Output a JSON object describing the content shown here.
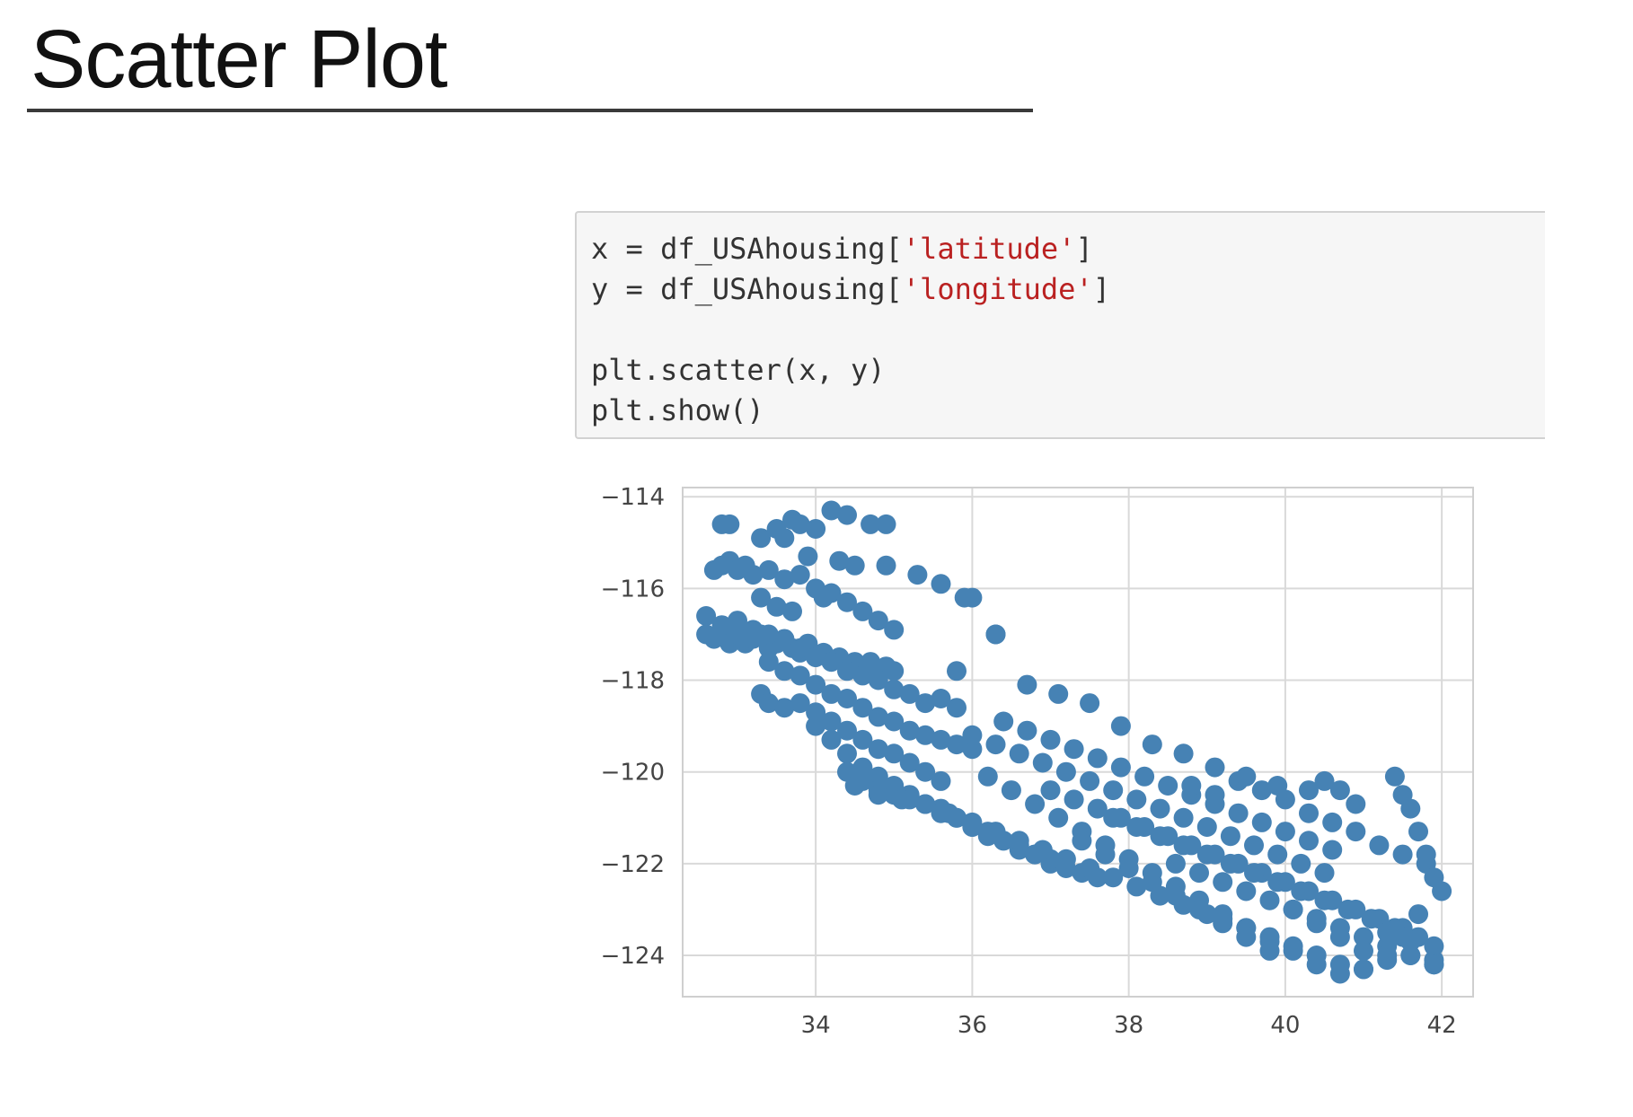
{
  "slide": {
    "title": "Scatter Plot"
  },
  "code_cell": {
    "lines": [
      {
        "segments": [
          {
            "text": "x = df_USAhousing[",
            "kind": "code"
          },
          {
            "text": "'latitude'",
            "kind": "string"
          },
          {
            "text": "]",
            "kind": "code"
          }
        ]
      },
      {
        "segments": [
          {
            "text": "y = df_USAhousing[",
            "kind": "code"
          },
          {
            "text": "'longitude'",
            "kind": "string"
          },
          {
            "text": "]",
            "kind": "code"
          }
        ]
      },
      {
        "segments": []
      },
      {
        "segments": [
          {
            "text": "plt.scatter(x, y)",
            "kind": "code"
          }
        ]
      },
      {
        "segments": [
          {
            "text": "plt.show()",
            "kind": "code"
          }
        ]
      }
    ],
    "colors": {
      "code": "#333333",
      "string": "#ba2121",
      "background": "#f6f6f6"
    }
  },
  "chart_data": {
    "type": "scatter",
    "title": "",
    "xlabel": "",
    "ylabel": "",
    "xlim": [
      32.3,
      42.4
    ],
    "ylim": [
      -124.9,
      -113.8
    ],
    "x_ticks": [
      34,
      36,
      38,
      40,
      42
    ],
    "y_ticks": [
      -114,
      -116,
      -118,
      -120,
      -122,
      -124
    ],
    "x_tick_labels": [
      "34",
      "36",
      "38",
      "40",
      "42"
    ],
    "y_tick_labels": [
      "−114",
      "−116",
      "−118",
      "−120",
      "−122",
      "−124"
    ],
    "grid": true,
    "legend": "none",
    "marker_color": "#4682b4",
    "grid_color": "#d9d9d9",
    "series": [
      {
        "x": [
          32.8,
          32.9,
          33.3,
          33.5,
          33.7,
          33.8,
          34.0,
          34.2,
          34.4,
          34.7,
          34.9,
          33.6,
          33.9,
          34.3,
          33.1,
          32.7,
          32.8,
          32.9,
          33.0,
          33.2,
          33.4,
          33.6,
          33.8,
          34.0,
          34.2,
          34.4,
          34.6,
          34.8,
          35.0,
          33.3,
          33.5,
          33.7,
          34.1,
          34.5,
          34.9,
          35.3,
          35.6,
          35.9,
          36.3,
          32.6,
          32.7,
          32.8,
          32.9,
          33.0,
          33.1,
          33.2,
          33.3,
          33.4,
          33.5,
          33.6,
          33.7,
          33.8,
          33.9,
          34.0,
          34.1,
          34.2,
          34.3,
          34.4,
          34.5,
          34.6,
          34.7,
          34.8,
          34.9,
          35.0,
          32.6,
          32.8,
          33.0,
          33.2,
          33.4,
          33.6,
          33.8,
          34.0,
          34.2,
          34.4,
          34.6,
          34.8,
          35.0,
          35.2,
          35.4,
          35.6,
          35.8,
          33.4,
          33.6,
          33.8,
          34.0,
          34.2,
          34.4,
          34.6,
          34.8,
          35.0,
          35.2,
          35.4,
          35.6,
          35.8,
          36.0,
          33.3,
          33.4,
          33.6,
          33.8,
          34.0,
          34.2,
          34.4,
          34.6,
          34.8,
          35.0,
          35.2,
          35.4,
          35.6,
          34.0,
          34.2,
          34.4,
          34.6,
          34.8,
          35.0,
          35.2,
          35.4,
          35.6,
          35.8,
          36.0,
          36.2,
          36.4,
          36.6,
          36.8,
          37.0,
          34.4,
          34.6,
          34.8,
          35.0,
          35.2,
          35.4,
          35.6,
          35.8,
          36.0,
          36.2,
          36.4,
          36.6,
          36.8,
          37.0,
          37.2,
          37.4,
          37.6,
          34.5,
          34.8,
          35.1,
          35.4,
          35.7,
          36.0,
          36.3,
          36.6,
          36.9,
          37.2,
          37.5,
          37.8,
          38.1,
          38.4,
          38.7,
          39.0,
          36.0,
          36.3,
          36.6,
          36.9,
          37.2,
          37.5,
          37.8,
          38.1,
          38.4,
          38.7,
          39.0,
          39.3,
          39.6,
          39.9,
          40.2,
          40.5,
          36.4,
          36.7,
          37.0,
          37.3,
          37.6,
          37.9,
          38.2,
          38.5,
          38.8,
          39.1,
          39.4,
          39.7,
          40.0,
          40.3,
          40.6,
          37.0,
          37.3,
          37.6,
          37.9,
          38.2,
          38.5,
          38.8,
          39.1,
          39.4,
          39.7,
          40.0,
          40.3,
          40.6,
          40.9,
          41.2,
          41.5,
          37.8,
          38.1,
          38.4,
          38.7,
          39.0,
          39.3,
          39.6,
          39.9,
          40.2,
          40.5,
          40.8,
          41.1,
          41.4,
          41.7,
          41.9,
          38.6,
          38.9,
          39.2,
          39.5,
          39.8,
          40.1,
          40.4,
          40.7,
          41.0,
          41.3,
          41.6,
          41.9,
          39.2,
          39.5,
          39.8,
          40.1,
          40.4,
          40.7,
          41.0,
          41.3,
          41.6,
          41.9,
          36.2,
          36.5,
          36.8,
          37.1,
          37.4,
          37.7,
          38.0,
          38.3,
          38.6,
          38.9,
          39.2,
          39.5,
          39.8,
          40.1,
          40.4,
          40.7,
          41.0,
          37.4,
          37.7,
          38.0,
          38.3,
          38.6,
          38.9,
          39.2,
          39.5,
          39.8,
          40.1,
          40.4,
          40.7,
          41.0,
          41.3,
          41.6,
          38.8,
          39.1,
          39.4,
          39.7,
          40.0,
          40.3,
          40.6,
          40.9,
          41.2,
          41.5,
          41.8,
          41.4,
          41.5,
          41.6,
          41.7,
          41.8,
          41.9,
          42.0,
          41.7,
          41.5,
          41.9,
          41.3,
          40.5,
          40.7,
          40.9,
          36.0,
          35.8,
          36.3,
          36.7,
          37.1,
          37.5,
          37.9,
          38.3,
          38.7,
          39.1,
          39.5,
          39.9,
          40.3
        ],
        "y": [
          -114.6,
          -114.6,
          -114.9,
          -114.7,
          -114.5,
          -114.6,
          -114.7,
          -114.3,
          -114.4,
          -114.6,
          -114.6,
          -114.9,
          -115.3,
          -115.4,
          -115.5,
          -115.6,
          -115.5,
          -115.4,
          -115.6,
          -115.7,
          -115.6,
          -115.8,
          -115.7,
          -116.0,
          -116.1,
          -116.3,
          -116.5,
          -116.7,
          -116.9,
          -116.2,
          -116.4,
          -116.5,
          -116.2,
          -115.5,
          -115.5,
          -115.7,
          -115.9,
          -116.2,
          -117.0,
          -117.0,
          -117.1,
          -116.9,
          -117.2,
          -117.0,
          -117.2,
          -117.1,
          -117.0,
          -117.3,
          -117.2,
          -117.1,
          -117.3,
          -117.4,
          -117.2,
          -117.5,
          -117.4,
          -117.6,
          -117.5,
          -117.7,
          -117.6,
          -117.8,
          -117.6,
          -117.9,
          -117.7,
          -117.8,
          -116.6,
          -116.8,
          -116.7,
          -116.9,
          -117.0,
          -117.1,
          -117.3,
          -117.5,
          -117.6,
          -117.8,
          -117.9,
          -118.0,
          -118.2,
          -118.3,
          -118.5,
          -118.4,
          -118.6,
          -117.6,
          -117.8,
          -117.9,
          -118.1,
          -118.3,
          -118.4,
          -118.6,
          -118.8,
          -118.9,
          -119.1,
          -119.2,
          -119.3,
          -119.4,
          -119.5,
          -118.3,
          -118.5,
          -118.6,
          -118.5,
          -118.7,
          -118.9,
          -119.1,
          -119.3,
          -119.5,
          -119.6,
          -119.8,
          -120.0,
          -120.2,
          -119.0,
          -119.3,
          -119.6,
          -119.9,
          -120.1,
          -120.3,
          -120.5,
          -120.7,
          -120.8,
          -121.0,
          -121.2,
          -121.4,
          -121.5,
          -121.7,
          -121.8,
          -122.0,
          -120.0,
          -120.2,
          -120.4,
          -120.5,
          -120.6,
          -120.7,
          -120.9,
          -121.0,
          -121.2,
          -121.3,
          -121.5,
          -121.6,
          -121.8,
          -121.9,
          -122.1,
          -122.2,
          -122.3,
          -120.3,
          -120.5,
          -120.6,
          -120.7,
          -120.9,
          -121.1,
          -121.3,
          -121.5,
          -121.7,
          -121.9,
          -122.1,
          -122.3,
          -122.5,
          -122.7,
          -122.9,
          -123.1,
          -119.2,
          -119.4,
          -119.6,
          -119.8,
          -120.0,
          -120.2,
          -120.4,
          -120.6,
          -120.8,
          -121.0,
          -121.2,
          -121.4,
          -121.6,
          -121.8,
          -122.0,
          -122.2,
          -118.9,
          -119.1,
          -119.3,
          -119.5,
          -119.7,
          -119.9,
          -120.1,
          -120.3,
          -120.5,
          -120.7,
          -120.9,
          -121.1,
          -121.3,
          -121.5,
          -121.7,
          -120.4,
          -120.6,
          -120.8,
          -121.0,
          -121.2,
          -121.4,
          -121.6,
          -121.8,
          -122.0,
          -122.2,
          -122.4,
          -122.6,
          -122.8,
          -123.0,
          -123.2,
          -123.4,
          -121.0,
          -121.2,
          -121.4,
          -121.6,
          -121.8,
          -122.0,
          -122.2,
          -122.4,
          -122.6,
          -122.8,
          -123.0,
          -123.2,
          -123.4,
          -123.6,
          -123.8,
          -122.0,
          -122.2,
          -122.4,
          -122.6,
          -122.8,
          -123.0,
          -123.2,
          -123.4,
          -123.6,
          -123.8,
          -124.0,
          -124.1,
          -123.2,
          -123.4,
          -123.6,
          -123.8,
          -124.0,
          -124.2,
          -124.3,
          -124.1,
          -124.0,
          -124.2,
          -120.1,
          -120.4,
          -120.7,
          -121.0,
          -121.3,
          -121.6,
          -121.9,
          -122.2,
          -122.5,
          -122.8,
          -123.1,
          -123.4,
          -123.7,
          -123.9,
          -124.2,
          -124.4,
          -124.3,
          -121.5,
          -121.8,
          -122.1,
          -122.4,
          -122.7,
          -123.0,
          -123.3,
          -123.6,
          -123.9,
          -123.0,
          -123.3,
          -123.6,
          -123.9,
          -123.5,
          -123.7,
          -120.3,
          -120.5,
          -120.2,
          -120.4,
          -120.6,
          -120.9,
          -121.1,
          -121.3,
          -121.6,
          -121.8,
          -122.0,
          -120.1,
          -120.5,
          -120.8,
          -121.3,
          -121.8,
          -122.3,
          -122.6,
          -123.1,
          -123.6,
          -124.2,
          -124.0,
          -120.2,
          -120.4,
          -120.7,
          -116.2,
          -117.8,
          -117.0,
          -118.1,
          -118.3,
          -118.5,
          -119.0,
          -119.4,
          -119.6,
          -119.9,
          -120.1,
          -120.3,
          -120.4
        ]
      }
    ]
  }
}
